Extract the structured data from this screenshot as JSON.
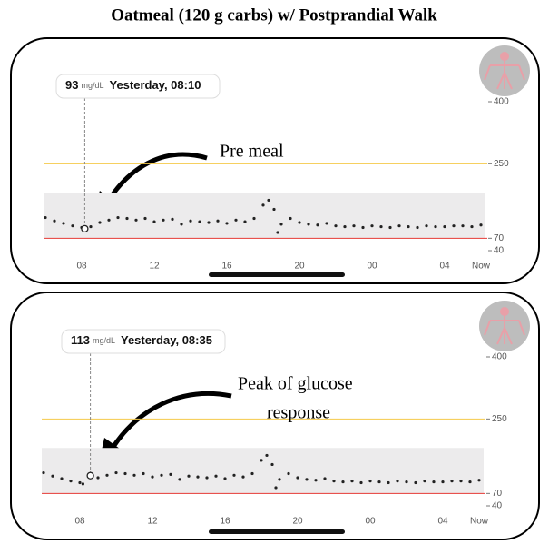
{
  "title": "Oatmeal (120 g carbs) w/ Postprandial Walk",
  "chart_data": [
    {
      "type": "scatter",
      "annotation": [
        "Pre meal"
      ],
      "tooltip": {
        "value": 93,
        "unit": "mg/dL",
        "time": "Yesterday, 08:10"
      },
      "highlight_index": 5,
      "x": [
        6.0,
        6.5,
        7.0,
        7.5,
        8.0,
        8.17,
        8.5,
        9.0,
        9.5,
        10.0,
        10.5,
        11.0,
        11.5,
        12.0,
        12.5,
        13.0,
        13.5,
        14.0,
        14.5,
        15.0,
        15.5,
        16.0,
        16.5,
        17.0,
        17.5,
        18.0,
        18.3,
        18.6,
        18.8,
        19.0,
        19.5,
        20.0,
        20.5,
        21.0,
        21.5,
        22.0,
        22.5,
        23.0,
        23.5,
        24.0,
        24.5,
        25.0,
        25.5,
        26.0,
        26.5,
        27.0,
        27.5,
        28.0,
        28.5,
        29.0,
        29.5,
        30.0
      ],
      "values": [
        120,
        112,
        106,
        100,
        96,
        93,
        98,
        108,
        114,
        120,
        118,
        114,
        118,
        110,
        114,
        116,
        104,
        112,
        110,
        108,
        112,
        106,
        114,
        110,
        118,
        150,
        162,
        140,
        84,
        104,
        118,
        108,
        104,
        102,
        106,
        100,
        98,
        100,
        96,
        100,
        98,
        96,
        100,
        98,
        96,
        100,
        98,
        98,
        100,
        100,
        98,
        102
      ],
      "color": "#222222",
      "xlim": [
        6,
        30.2
      ],
      "ylim": [
        40,
        400
      ],
      "xticks": [
        {
          "value": 8,
          "label": "08"
        },
        12,
        16,
        20,
        {
          "value": 24,
          "label": "00"
        },
        {
          "value": 28,
          "label": "04"
        },
        {
          "value": 30,
          "label": "Now"
        }
      ],
      "yticks": [
        40,
        70,
        250,
        400
      ],
      "target_range": [
        70,
        180
      ],
      "threshold_lines": [
        {
          "value": 250,
          "color": "#f5c94a"
        },
        {
          "value": 70,
          "color": "#e53935"
        }
      ]
    },
    {
      "type": "scatter",
      "annotation": [
        "Peak of glucose",
        "response"
      ],
      "tooltip": {
        "value": 113,
        "unit": "mg/dL",
        "time": "Yesterday, 08:35"
      },
      "highlight_index": 6,
      "x": [
        6.0,
        6.5,
        7.0,
        7.5,
        8.0,
        8.17,
        8.58,
        9.0,
        9.5,
        10.0,
        10.5,
        11.0,
        11.5,
        12.0,
        12.5,
        13.0,
        13.5,
        14.0,
        14.5,
        15.0,
        15.5,
        16.0,
        16.5,
        17.0,
        17.5,
        18.0,
        18.3,
        18.6,
        18.8,
        19.0,
        19.5,
        20.0,
        20.5,
        21.0,
        21.5,
        22.0,
        22.5,
        23.0,
        23.5,
        24.0,
        24.5,
        25.0,
        25.5,
        26.0,
        26.5,
        27.0,
        27.5,
        28.0,
        28.5,
        29.0,
        29.5,
        30.0
      ],
      "values": [
        120,
        112,
        106,
        100,
        96,
        93,
        113,
        108,
        114,
        120,
        118,
        114,
        118,
        110,
        114,
        116,
        104,
        112,
        110,
        108,
        112,
        106,
        114,
        110,
        118,
        150,
        162,
        140,
        84,
        104,
        118,
        108,
        104,
        102,
        106,
        100,
        98,
        100,
        96,
        100,
        98,
        96,
        100,
        98,
        96,
        100,
        98,
        98,
        100,
        100,
        98,
        102
      ],
      "color": "#222222",
      "xlim": [
        6,
        30.2
      ],
      "ylim": [
        40,
        400
      ],
      "xticks": [
        {
          "value": 8,
          "label": "08"
        },
        12,
        16,
        20,
        {
          "value": 24,
          "label": "00"
        },
        {
          "value": 28,
          "label": "04"
        },
        {
          "value": 30,
          "label": "Now"
        }
      ],
      "yticks": [
        40,
        70,
        250,
        400
      ],
      "target_range": [
        70,
        180
      ],
      "threshold_lines": [
        {
          "value": 250,
          "color": "#f5c94a"
        },
        {
          "value": 70,
          "color": "#e53935"
        }
      ]
    }
  ]
}
